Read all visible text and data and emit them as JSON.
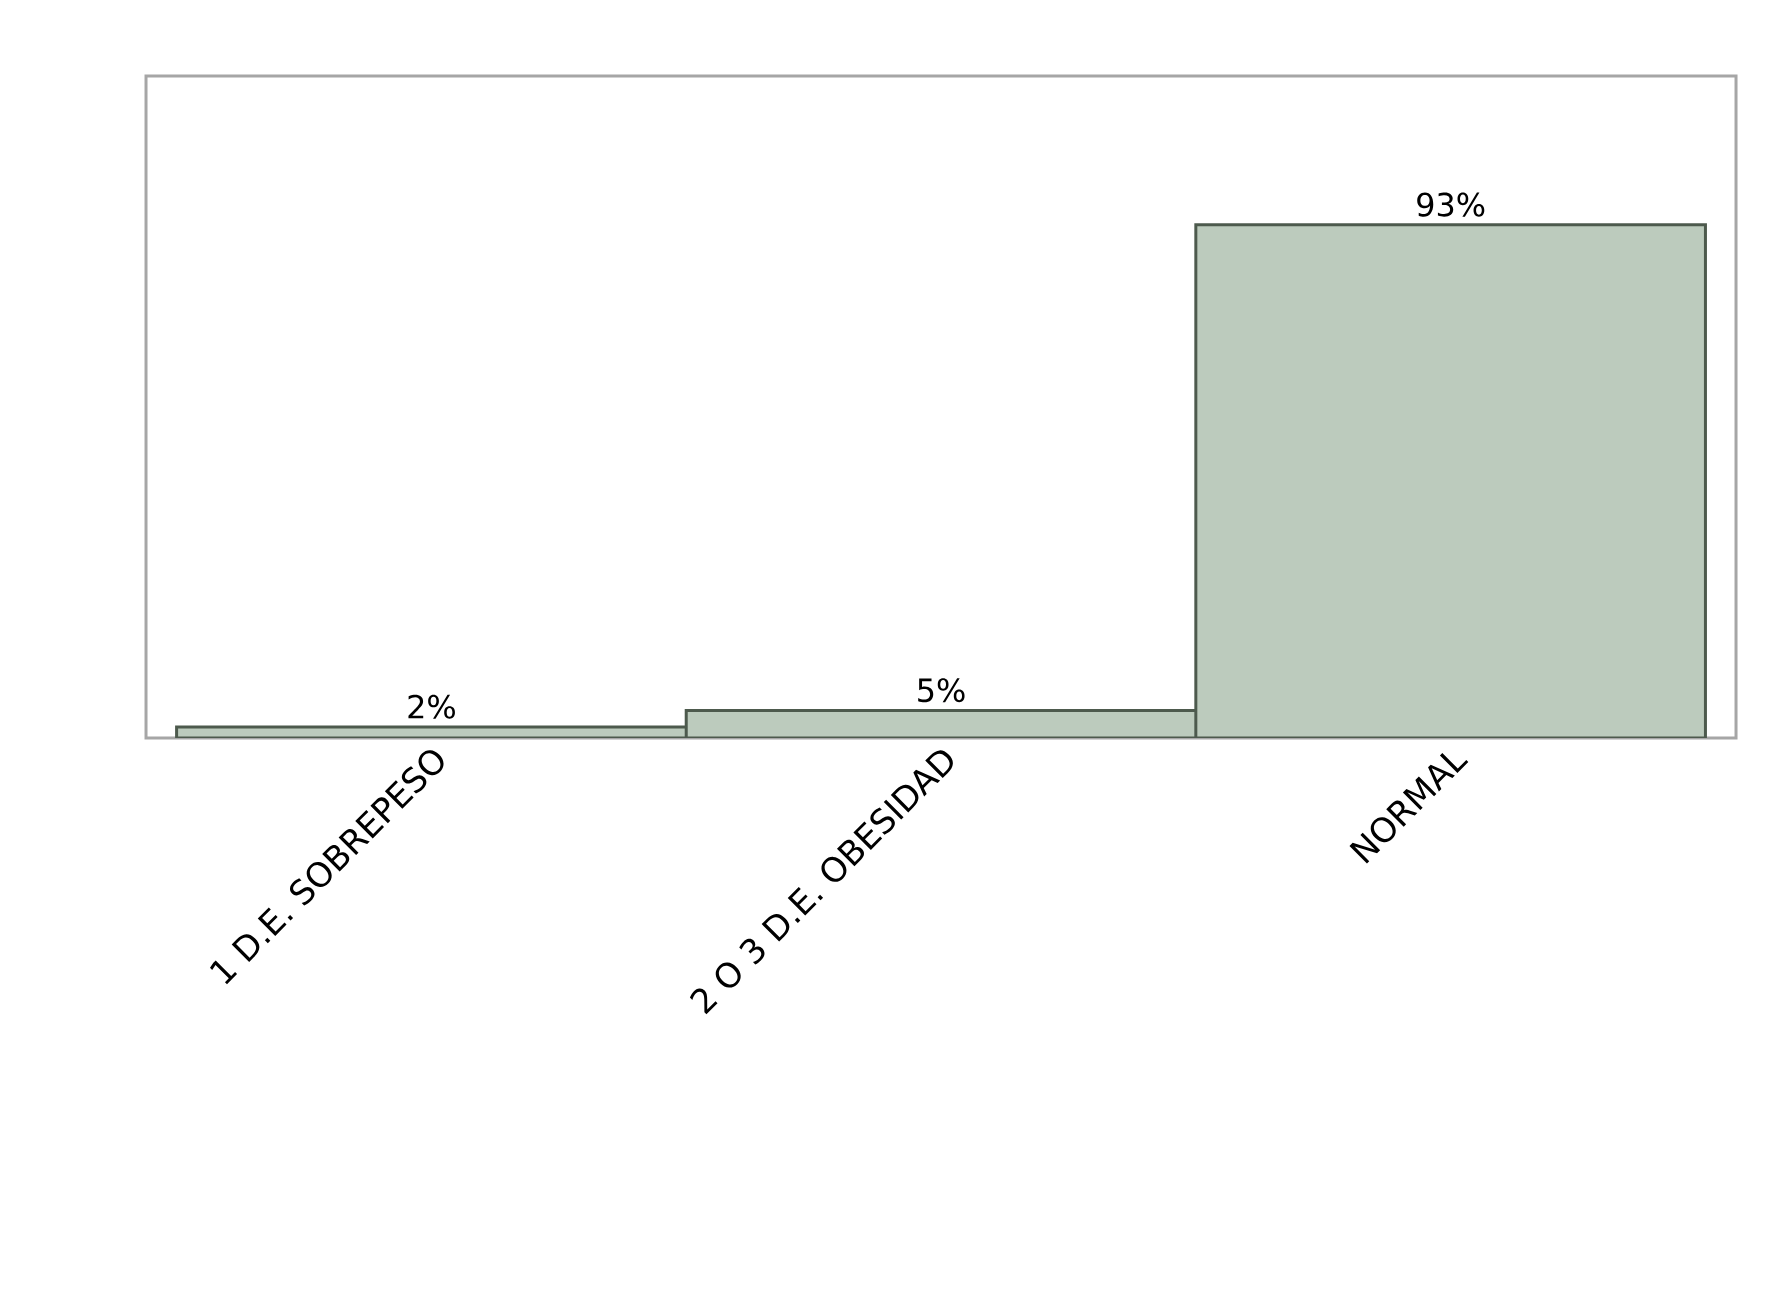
{
  "chart_data": {
    "type": "bar",
    "categories": [
      "1 D.E. SOBREPESO",
      "2 O 3 D.E. OBESIDAD",
      "NORMAL"
    ],
    "values": [
      2,
      5,
      93
    ],
    "value_labels": [
      "2%",
      "5%",
      "93%"
    ],
    "color": "#bccbbd"
  }
}
